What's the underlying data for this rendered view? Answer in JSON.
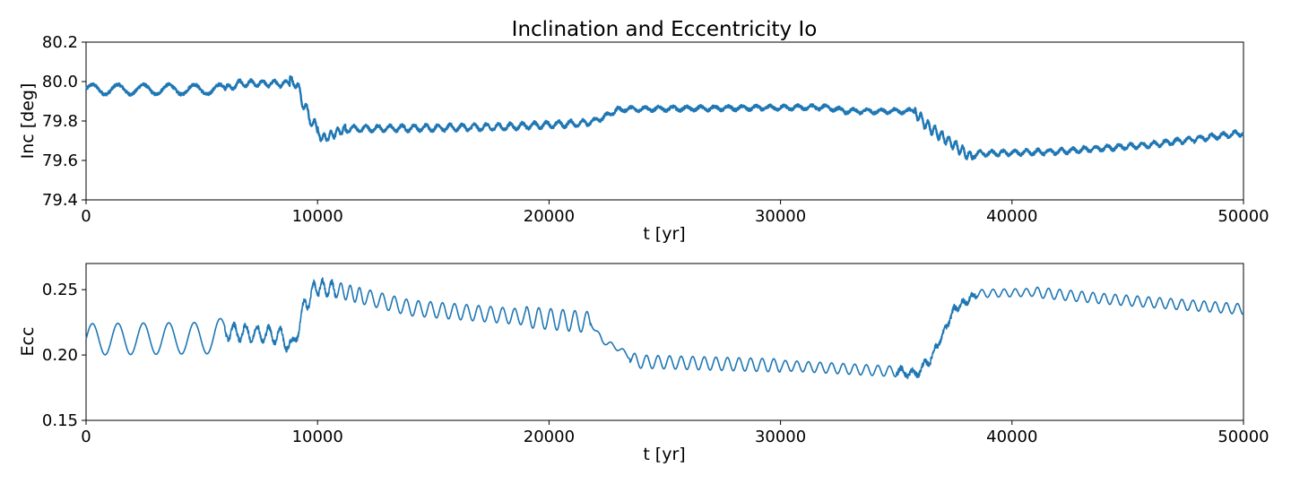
{
  "chart_data": [
    {
      "type": "line",
      "title": "Inclination and Eccentricity Io",
      "xlabel": "t [yr]",
      "ylabel": "Inc [deg]",
      "xlim": [
        0,
        50000
      ],
      "ylim": [
        79.4,
        80.2
      ],
      "xticks": [
        "0",
        "10000",
        "20000",
        "30000",
        "40000",
        "50000"
      ],
      "yticks": [
        "79.4",
        "79.6",
        "79.8",
        "80.0",
        "80.2"
      ],
      "grid": false,
      "color": "#1f77b4",
      "series": [
        {
          "segments": [
            {
              "t0": 0,
              "t1": 6000,
              "level": 79.96,
              "amp": 0.025,
              "period": 1100
            },
            {
              "t0": 6000,
              "t1": 8800,
              "level": 79.99,
              "amp": 0.015,
              "period": 500
            },
            {
              "t0": 8800,
              "t1": 10000,
              "level": 79.86,
              "amp": 0.03,
              "period": 350
            },
            {
              "t0": 10000,
              "t1": 11200,
              "level": 79.72,
              "amp": 0.02,
              "period": 300
            },
            {
              "t0": 11200,
              "t1": 21800,
              "level": 79.77,
              "amp": 0.015,
              "period": 520
            },
            {
              "t0": 21800,
              "t1": 23000,
              "level": 79.8,
              "amp": 0.01,
              "period": 520
            },
            {
              "t0": 23000,
              "t1": 32000,
              "level": 79.865,
              "amp": 0.01,
              "period": 600
            },
            {
              "t0": 32000,
              "t1": 35800,
              "level": 79.85,
              "amp": 0.01,
              "period": 600
            },
            {
              "t0": 35800,
              "t1": 38300,
              "level": 79.72,
              "amp": 0.025,
              "period": 300
            },
            {
              "t0": 38300,
              "t1": 43000,
              "level": 79.635,
              "amp": 0.012,
              "period": 500
            },
            {
              "t0": 43000,
              "t1": 50000,
              "level": 79.68,
              "amp": 0.012,
              "period": 500
            }
          ],
          "trend": [
            [
              0,
              79.96
            ],
            [
              6000,
              79.96
            ],
            [
              6600,
              79.99
            ],
            [
              8800,
              79.99
            ],
            [
              9000,
              80.01
            ],
            [
              9600,
              79.83
            ],
            [
              10200,
              79.71
            ],
            [
              11200,
              79.76
            ],
            [
              18000,
              79.77
            ],
            [
              21600,
              79.79
            ],
            [
              22200,
              79.81
            ],
            [
              23000,
              79.86
            ],
            [
              32000,
              79.87
            ],
            [
              32800,
              79.85
            ],
            [
              35800,
              79.85
            ],
            [
              36300,
              79.78
            ],
            [
              37000,
              79.72
            ],
            [
              38200,
              79.62
            ],
            [
              38500,
              79.635
            ],
            [
              42000,
              79.645
            ],
            [
              46000,
              79.68
            ],
            [
              50000,
              79.74
            ]
          ]
        }
      ]
    },
    {
      "type": "line",
      "title": "",
      "xlabel": "t [yr]",
      "ylabel": "Ecc",
      "xlim": [
        0,
        50000
      ],
      "ylim": [
        0.15,
        0.27
      ],
      "xticks": [
        "0",
        "10000",
        "20000",
        "30000",
        "40000",
        "50000"
      ],
      "yticks": [
        "0.15",
        "0.20",
        "0.25"
      ],
      "grid": false,
      "color": "#1f77b4",
      "series": [
        {
          "trend": [
            [
              0,
              0.212
            ],
            [
              5500,
              0.213
            ],
            [
              6000,
              0.218
            ],
            [
              8400,
              0.215
            ],
            [
              8900,
              0.205
            ],
            [
              9400,
              0.235
            ],
            [
              9900,
              0.252
            ],
            [
              10800,
              0.25
            ],
            [
              14000,
              0.236
            ],
            [
              21800,
              0.225
            ],
            [
              22300,
              0.211
            ],
            [
              23000,
              0.205
            ],
            [
              23800,
              0.195
            ],
            [
              30000,
              0.192
            ],
            [
              35400,
              0.187
            ],
            [
              35800,
              0.185
            ],
            [
              36400,
              0.195
            ],
            [
              37000,
              0.215
            ],
            [
              37500,
              0.235
            ],
            [
              38500,
              0.247
            ],
            [
              41000,
              0.248
            ],
            [
              44000,
              0.243
            ],
            [
              50000,
              0.235
            ]
          ],
          "oscillation": [
            [
              0,
              0.012,
              1100
            ],
            [
              6000,
              0.006,
              500
            ],
            [
              8000,
              0.006,
              500
            ],
            [
              9500,
              0.006,
              400
            ],
            [
              12000,
              0.006,
              520
            ],
            [
              19000,
              0.008,
              520
            ],
            [
              21800,
              0.002,
              520
            ],
            [
              23500,
              0.005,
              500
            ],
            [
              30000,
              0.004,
              500
            ],
            [
              35000,
              0.003,
              500
            ],
            [
              36500,
              0.002,
              400
            ],
            [
              38500,
              0.003,
              480
            ],
            [
              41000,
              0.004,
              480
            ],
            [
              50000,
              0.004,
              480
            ]
          ]
        }
      ]
    }
  ]
}
